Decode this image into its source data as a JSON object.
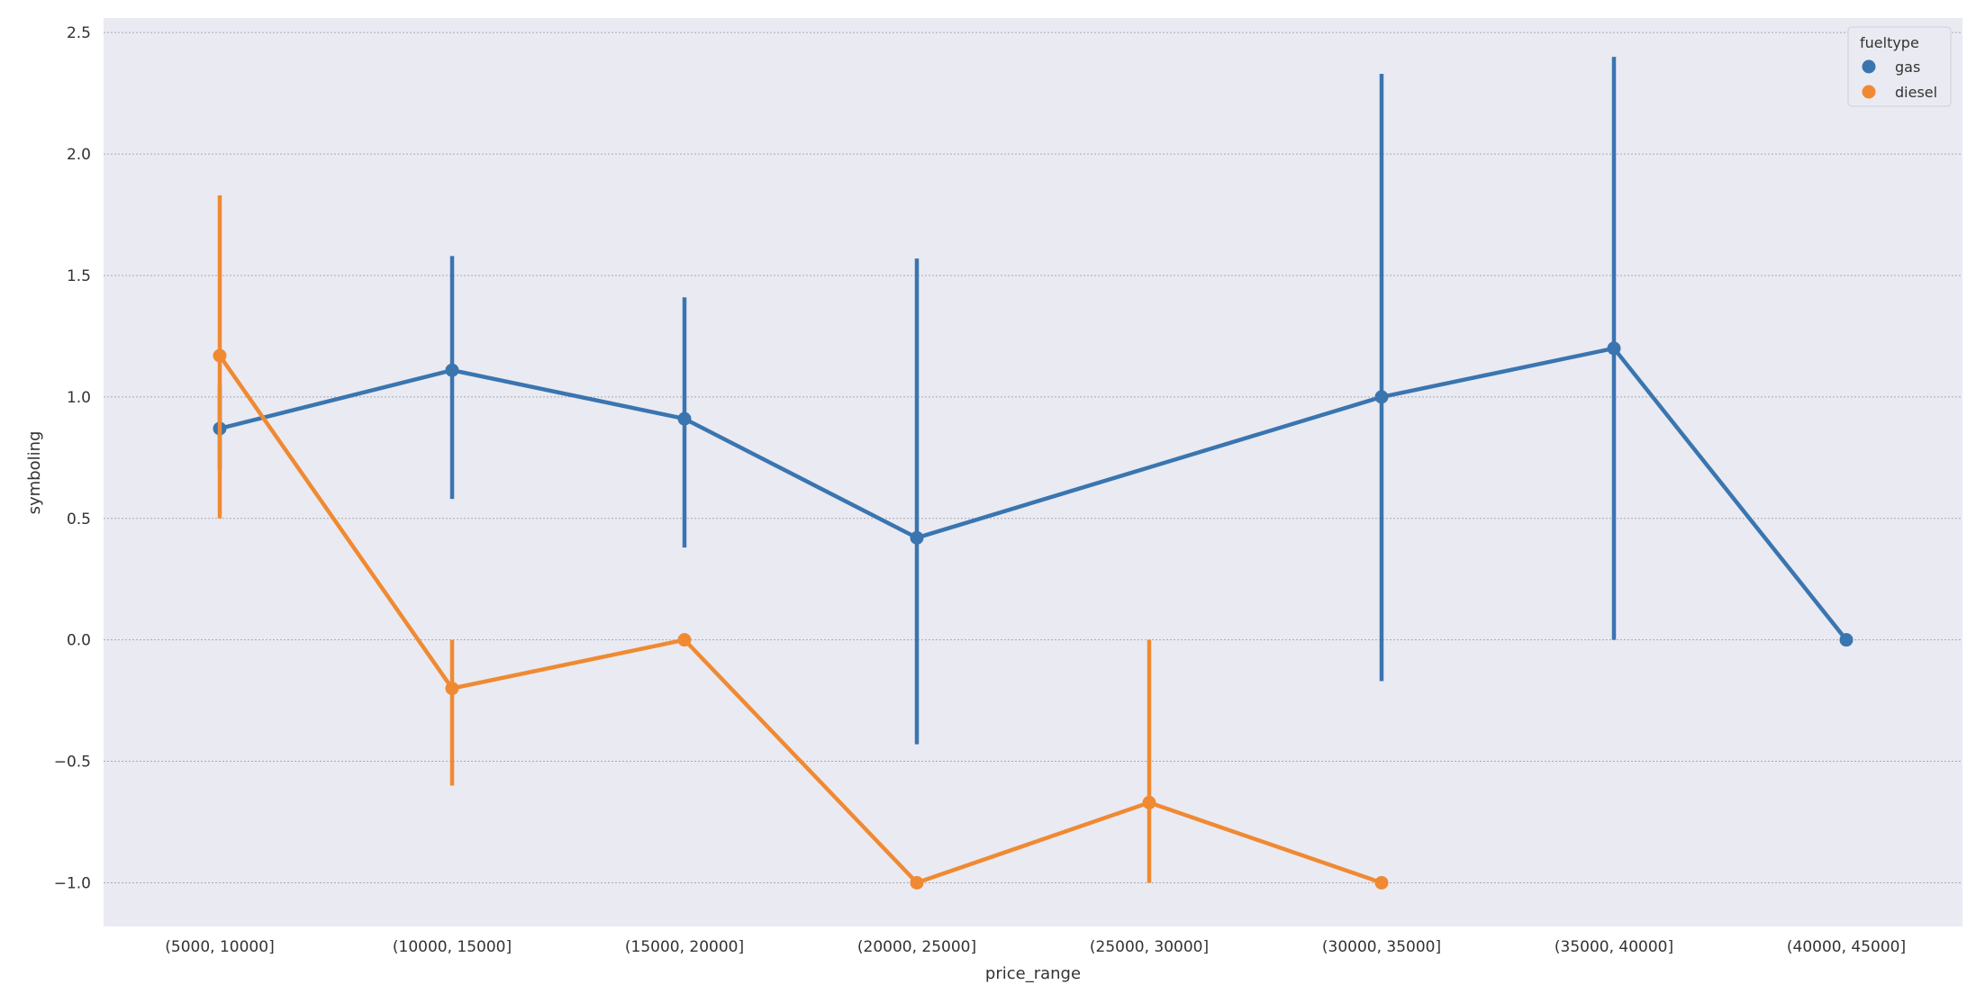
{
  "chart_data": {
    "type": "line",
    "title": "",
    "xlabel": "price_range",
    "ylabel": "symboling",
    "categories": [
      "(5000, 10000]",
      "(10000, 15000]",
      "(15000, 20000]",
      "(20000, 25000]",
      "(25000, 30000]",
      "(30000, 35000]",
      "(35000, 40000]",
      "(40000, 45000]"
    ],
    "ylim": [
      -1.18,
      2.56
    ],
    "yticks": [
      {
        "value": 2.5,
        "label": "2.5"
      },
      {
        "value": 2.0,
        "label": "2.0"
      },
      {
        "value": 1.5,
        "label": "1.5"
      },
      {
        "value": 1.0,
        "label": "1.0"
      },
      {
        "value": 0.5,
        "label": "0.5"
      },
      {
        "value": 0.0,
        "label": "0.0"
      },
      {
        "value": -0.5,
        "label": "−0.5"
      },
      {
        "value": -1.0,
        "label": "−1.0"
      }
    ],
    "grid": "horizontal",
    "legend": {
      "title": "fueltype",
      "placement": "top-right"
    },
    "series": [
      {
        "name": "gas",
        "color": "#3a75b0",
        "values": [
          0.87,
          1.11,
          0.91,
          0.42,
          null,
          1.0,
          1.2,
          0.0
        ],
        "ci": [
          [
            0.7,
            1.05
          ],
          [
            0.58,
            1.58
          ],
          [
            0.38,
            1.41
          ],
          [
            -0.43,
            1.57
          ],
          null,
          [
            -0.17,
            2.33
          ],
          [
            0.0,
            2.4
          ],
          null
        ]
      },
      {
        "name": "diesel",
        "color": "#ef8a33",
        "values": [
          1.17,
          -0.2,
          0.0,
          -1.0,
          -0.67,
          -1.0,
          null,
          null
        ],
        "ci": [
          [
            0.5,
            1.83
          ],
          [
            -0.6,
            0.0
          ],
          null,
          null,
          [
            -1.0,
            0.0
          ],
          null,
          null,
          null
        ]
      }
    ]
  }
}
